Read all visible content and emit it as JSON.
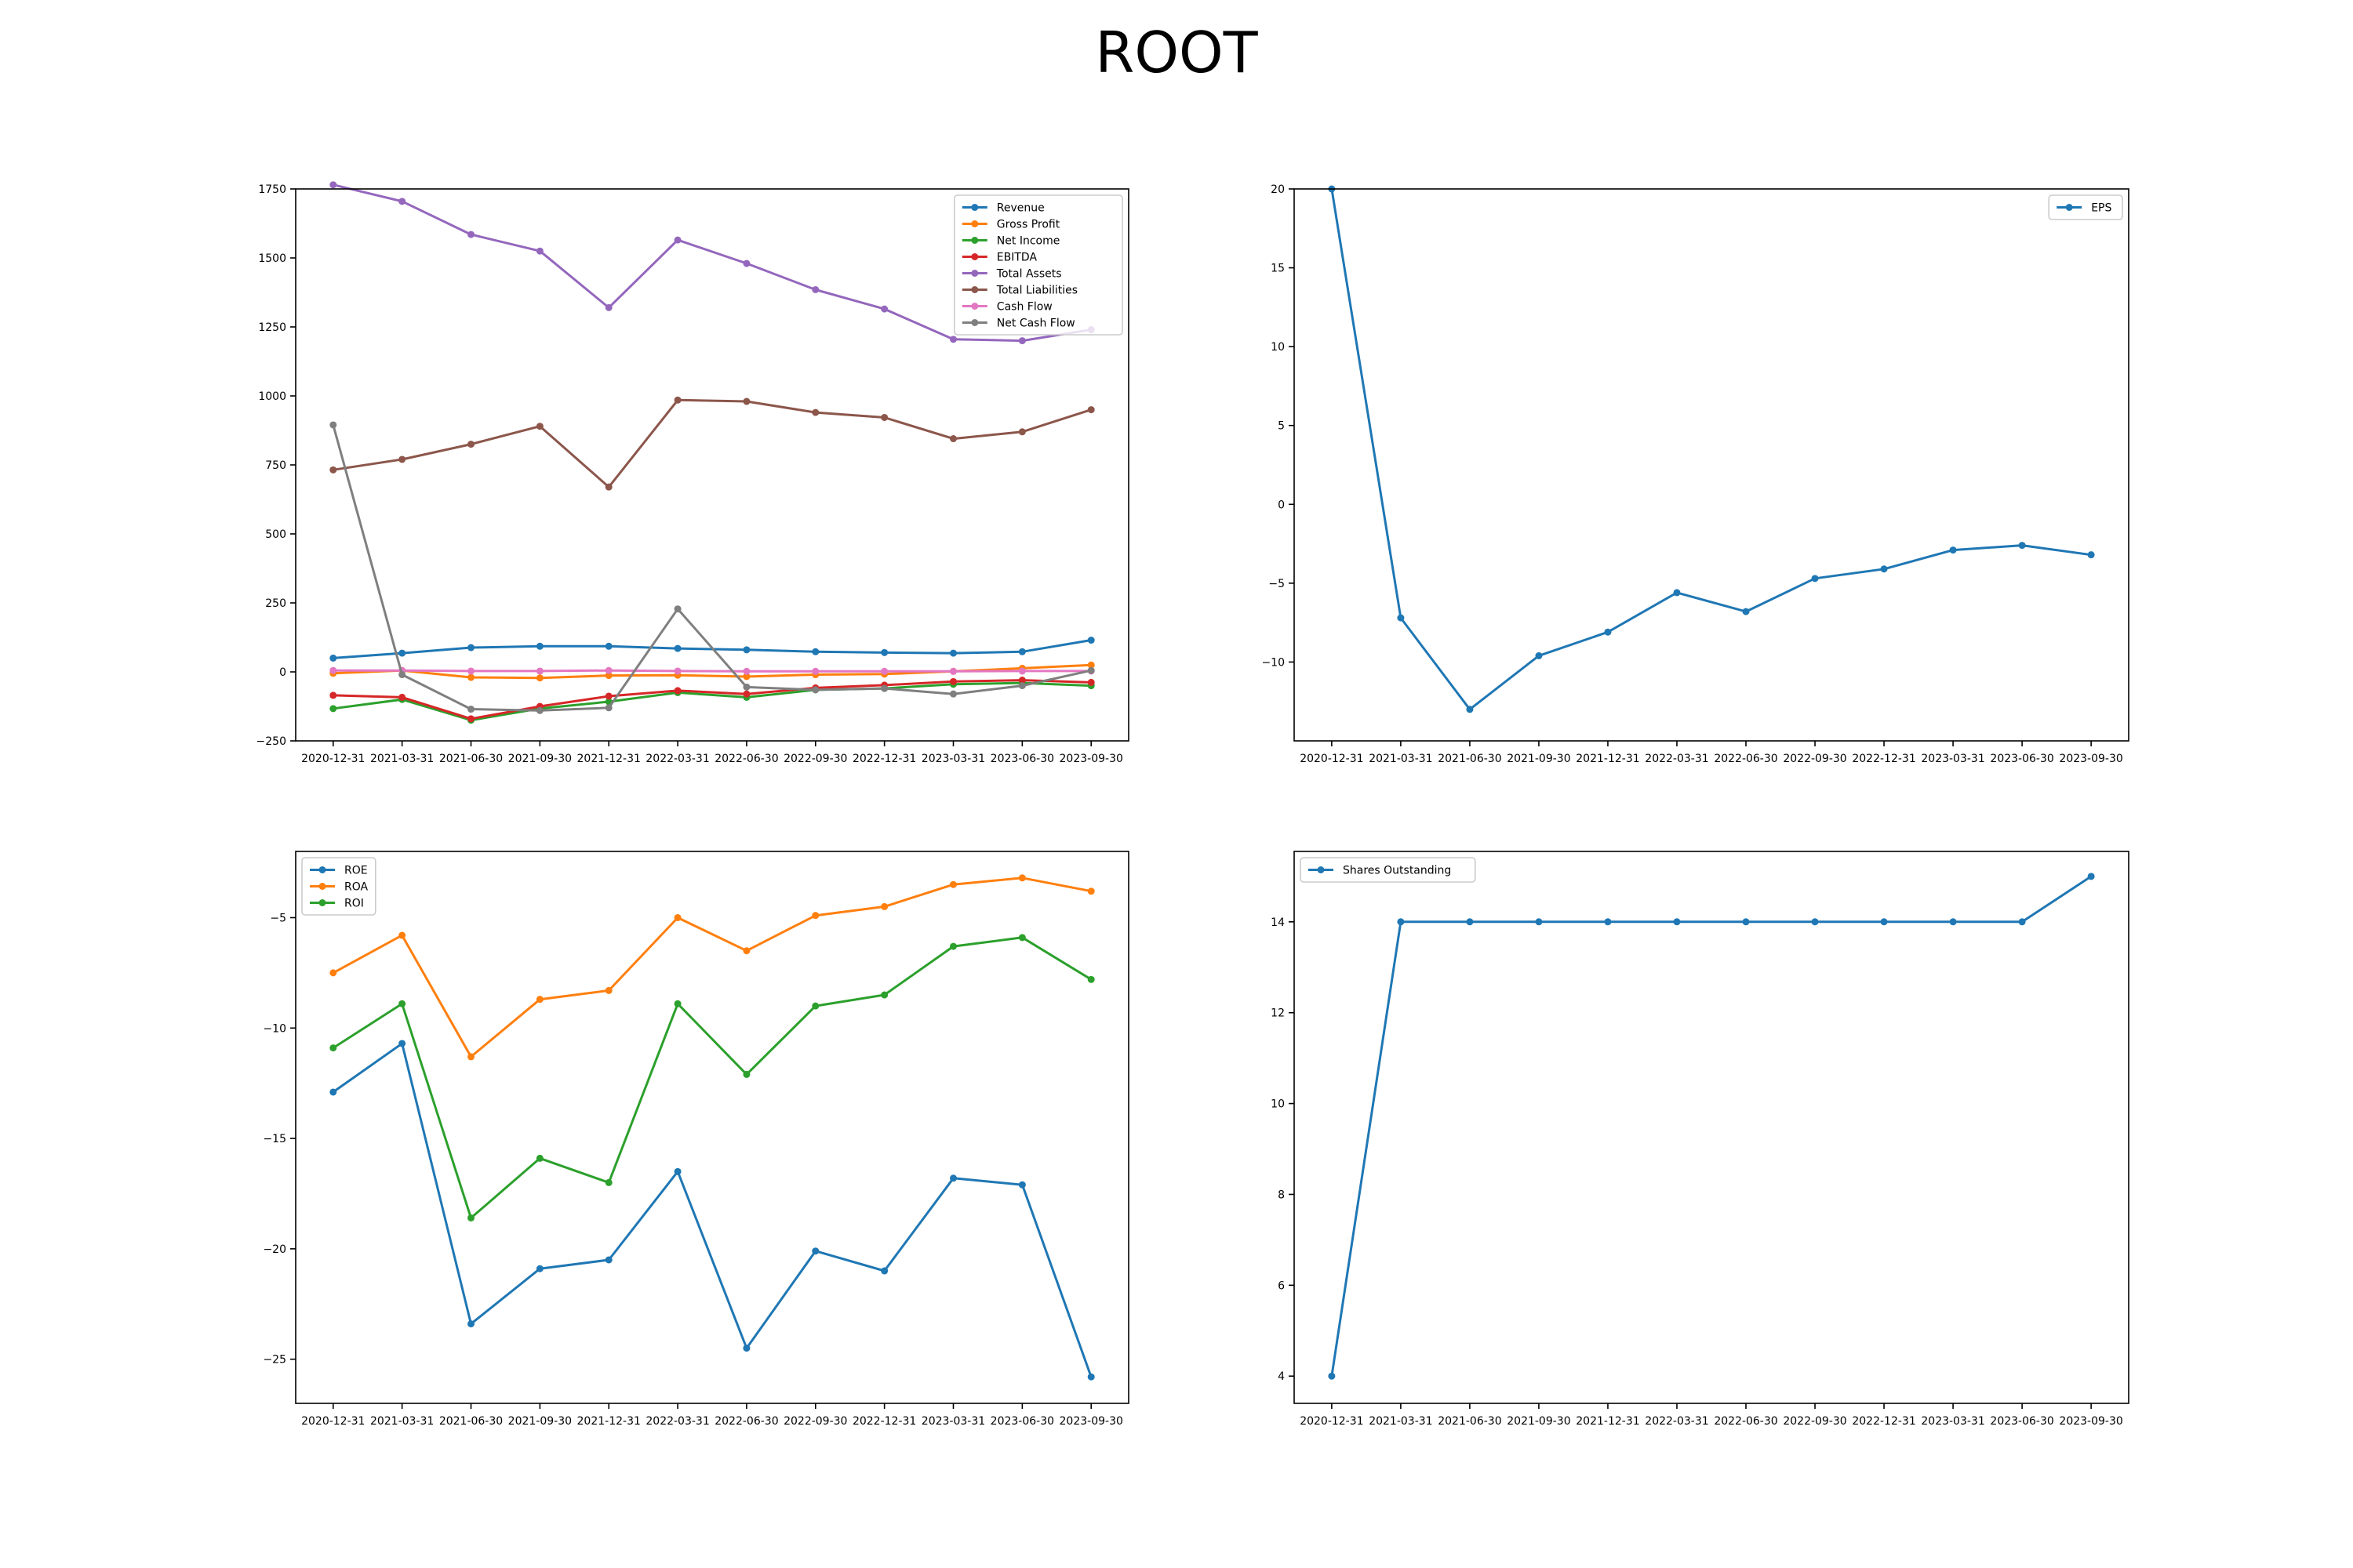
{
  "title": "ROOT",
  "colors": [
    "#1f77b4",
    "#ff7f0e",
    "#2ca02c",
    "#d62728",
    "#9467bd",
    "#8c564b",
    "#e377c2",
    "#7f7f7f"
  ],
  "chart_data": [
    {
      "type": "line",
      "position": "top-left",
      "x": [
        "2020-12-31",
        "2021-03-31",
        "2021-06-30",
        "2021-09-30",
        "2021-12-31",
        "2022-03-31",
        "2022-06-30",
        "2022-09-30",
        "2022-12-31",
        "2023-03-31",
        "2023-06-30",
        "2023-09-30"
      ],
      "ylim": [
        -250,
        1750
      ],
      "yticks": [
        -250,
        0,
        250,
        500,
        750,
        1000,
        1250,
        1500,
        1750
      ],
      "legend": "top-right",
      "series": [
        {
          "name": "Revenue",
          "color": "#1f77b4",
          "values": [
            50,
            68,
            88,
            93,
            93,
            85,
            80,
            73,
            70,
            68,
            73,
            115
          ]
        },
        {
          "name": "Gross Profit",
          "color": "#ff7f0e",
          "values": [
            -5,
            5,
            -20,
            -22,
            -13,
            -12,
            -17,
            -10,
            -8,
            2,
            13,
            25
          ]
        },
        {
          "name": "Net Income",
          "color": "#2ca02c",
          "values": [
            -133,
            -100,
            -175,
            -133,
            -108,
            -75,
            -92,
            -65,
            -60,
            -45,
            -40,
            -50
          ]
        },
        {
          "name": "EBITDA",
          "color": "#d62728",
          "values": [
            -85,
            -92,
            -170,
            -125,
            -88,
            -68,
            -80,
            -58,
            -48,
            -35,
            -30,
            -38
          ]
        },
        {
          "name": "Total Assets",
          "color": "#9467bd",
          "values": [
            1765,
            1705,
            1585,
            1525,
            1320,
            1565,
            1480,
            1385,
            1315,
            1205,
            1200,
            1240
          ]
        },
        {
          "name": "Total Liabilities",
          "color": "#8c564b",
          "values": [
            732,
            770,
            825,
            890,
            670,
            985,
            980,
            940,
            922,
            845,
            870,
            950
          ]
        },
        {
          "name": "Cash Flow",
          "color": "#e377c2",
          "values": [
            5,
            5,
            3,
            3,
            5,
            3,
            2,
            2,
            2,
            2,
            3,
            3
          ]
        },
        {
          "name": "Net Cash Flow",
          "color": "#7f7f7f",
          "values": [
            895,
            -10,
            -135,
            -140,
            -130,
            228,
            -55,
            -65,
            -60,
            -80,
            -50,
            5
          ]
        }
      ]
    },
    {
      "type": "line",
      "position": "top-right",
      "x": [
        "2020-12-31",
        "2021-03-31",
        "2021-06-30",
        "2021-09-30",
        "2021-12-31",
        "2022-03-31",
        "2022-06-30",
        "2022-09-30",
        "2022-12-31",
        "2023-03-31",
        "2023-06-30",
        "2023-09-30"
      ],
      "ylim": [
        -15,
        20
      ],
      "yticks": [
        -10,
        -5,
        0,
        5,
        10,
        15,
        20
      ],
      "legend": "top-right",
      "series": [
        {
          "name": "EPS",
          "color": "#1f77b4",
          "values": [
            20,
            -7.2,
            -13,
            -9.6,
            -8.1,
            -5.6,
            -6.8,
            -4.7,
            -4.1,
            -2.9,
            -2.6,
            -3.2
          ]
        }
      ]
    },
    {
      "type": "line",
      "position": "bottom-left",
      "x": [
        "2020-12-31",
        "2021-03-31",
        "2021-06-30",
        "2021-09-30",
        "2021-12-31",
        "2022-03-31",
        "2022-06-30",
        "2022-09-30",
        "2022-12-31",
        "2023-03-31",
        "2023-06-30",
        "2023-09-30"
      ],
      "ylim": [
        -27,
        -2
      ],
      "yticks": [
        -25,
        -20,
        -15,
        -10,
        -5
      ],
      "legend": "top-left",
      "series": [
        {
          "name": "ROE",
          "color": "#1f77b4",
          "values": [
            -12.9,
            -10.7,
            -23.4,
            -20.9,
            -20.5,
            -16.5,
            -24.5,
            -20.1,
            -21.0,
            -16.8,
            -17.1,
            -25.8
          ]
        },
        {
          "name": "ROA",
          "color": "#ff7f0e",
          "values": [
            -7.5,
            -5.8,
            -11.3,
            -8.7,
            -8.3,
            -5.0,
            -6.5,
            -4.9,
            -4.5,
            -3.5,
            -3.2,
            -3.8
          ]
        },
        {
          "name": "ROI",
          "color": "#2ca02c",
          "values": [
            -10.9,
            -8.9,
            -18.6,
            -15.9,
            -17.0,
            -8.9,
            -12.1,
            -9.0,
            -8.5,
            -6.3,
            -5.9,
            -7.8
          ]
        }
      ]
    },
    {
      "type": "line",
      "position": "bottom-right",
      "x": [
        "2020-12-31",
        "2021-03-31",
        "2021-06-30",
        "2021-09-30",
        "2021-12-31",
        "2022-03-31",
        "2022-06-30",
        "2022-09-30",
        "2022-12-31",
        "2023-03-31",
        "2023-06-30",
        "2023-09-30"
      ],
      "ylim": [
        3.4,
        15.55
      ],
      "yticks": [
        4,
        6,
        8,
        10,
        12,
        14
      ],
      "legend": "top-left",
      "series": [
        {
          "name": "Shares Outstanding",
          "color": "#1f77b4",
          "values": [
            4,
            14,
            14,
            14,
            14,
            14,
            14,
            14,
            14,
            14,
            14,
            15
          ]
        }
      ]
    }
  ]
}
